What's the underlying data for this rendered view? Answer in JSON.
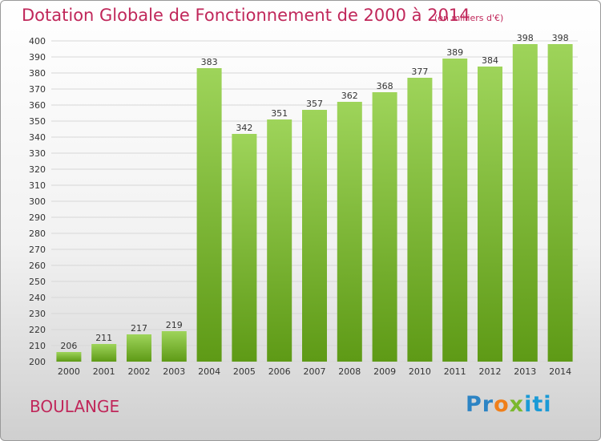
{
  "header": {
    "title": "Dotation Globale de Fonctionnement de 2000 à 2014",
    "unit": "(en milliers d'€)"
  },
  "footer": {
    "commune": "BOULANGE",
    "logo_text": "Proxiti"
  },
  "colors": {
    "accent": "#c0275a",
    "bar_top": "#9ed45a",
    "bar_bottom": "#5e9a16"
  },
  "chart_data": {
    "type": "bar",
    "title": "Dotation Globale de Fonctionnement de 2000 à 2014",
    "subtitle": "(en milliers d'€)",
    "categories": [
      "2000",
      "2001",
      "2002",
      "2003",
      "2004",
      "2005",
      "2006",
      "2007",
      "2008",
      "2009",
      "2010",
      "2011",
      "2012",
      "2013",
      "2014"
    ],
    "values": [
      206,
      211,
      217,
      219,
      383,
      342,
      351,
      357,
      362,
      368,
      377,
      389,
      384,
      398,
      398
    ],
    "ylim": [
      200,
      400
    ],
    "yticks": [
      200,
      210,
      220,
      230,
      240,
      250,
      260,
      270,
      280,
      290,
      300,
      310,
      320,
      330,
      340,
      350,
      360,
      370,
      380,
      390,
      400
    ],
    "grid": true,
    "legend": "none"
  }
}
